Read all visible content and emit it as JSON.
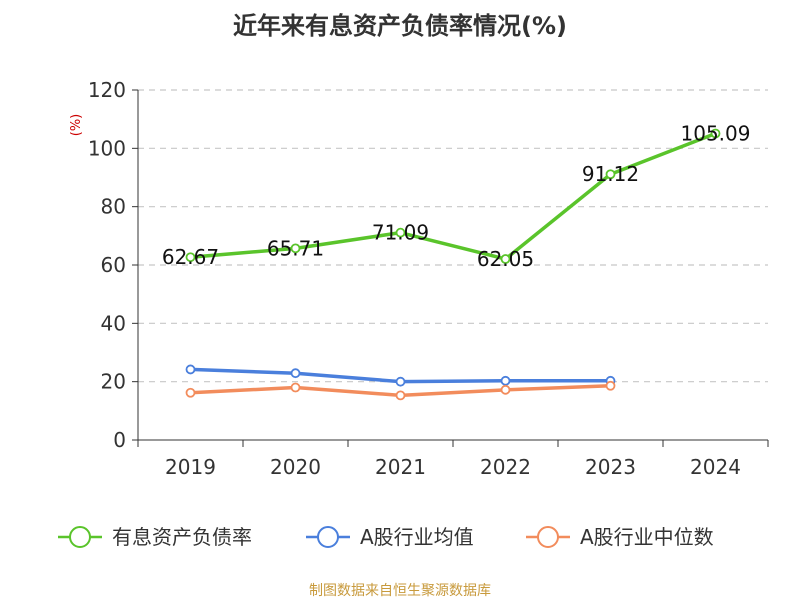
{
  "chart_data": {
    "type": "line",
    "title": "近年来有息资产负债率情况(%)",
    "ylabel": "(%)",
    "xlabel": "",
    "categories": [
      "2019",
      "2020",
      "2021",
      "2022",
      "2023",
      "2024"
    ],
    "ylim": [
      0,
      120
    ],
    "yticks": [
      0,
      20,
      40,
      60,
      80,
      100,
      120
    ],
    "grid": true,
    "legend_position": "bottom",
    "series": [
      {
        "name": "有息资产负债率",
        "color": "#5ac42b",
        "values": [
          62.67,
          65.71,
          71.09,
          62.05,
          91.12,
          105.09
        ],
        "labels": [
          "62.67",
          "65.71",
          "71.09",
          "62.05",
          "91.12",
          "105.09"
        ]
      },
      {
        "name": "A股行业均值",
        "color": "#4a7fdc",
        "values": [
          24.2,
          22.9,
          20.0,
          20.3,
          20.3,
          null
        ]
      },
      {
        "name": "A股行业中位数",
        "color": "#f28c5c",
        "values": [
          16.2,
          18.0,
          15.3,
          17.2,
          18.6,
          null
        ]
      }
    ]
  },
  "source": "制图数据来自恒生聚源数据库"
}
